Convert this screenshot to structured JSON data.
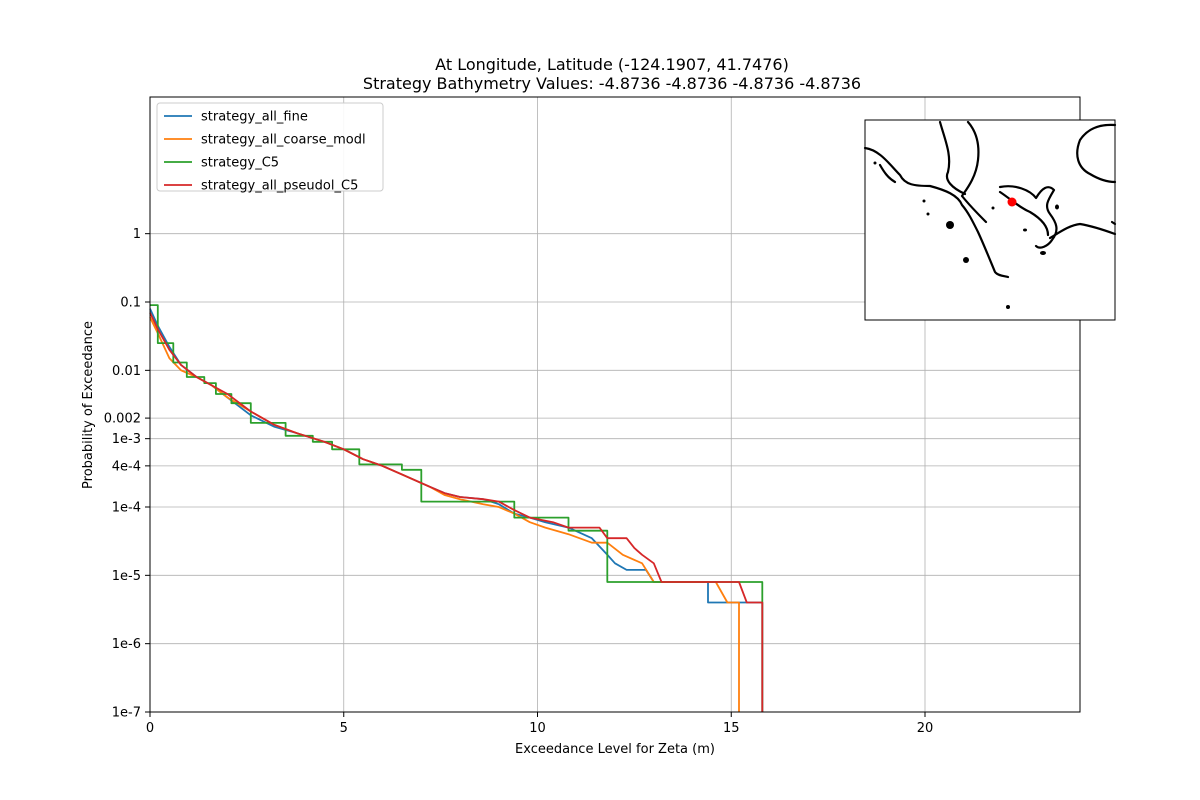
{
  "chart_data": {
    "type": "line",
    "title_lines": [
      "At Longitude, Latitude (-124.1907,  41.7476)",
      "Strategy Bathymetry Values:   -4.8736   -4.8736   -4.8736   -4.8736"
    ],
    "xlabel": "Exceedance Level for Zeta (m)",
    "ylabel": "Probability of Exceedance",
    "xlim": [
      0,
      24
    ],
    "ylim": [
      1e-07,
      100
    ],
    "yscale": "log",
    "grid": true,
    "legend_position": "upper-left",
    "x_ticks": [
      {
        "value": 0,
        "label": "0"
      },
      {
        "value": 5,
        "label": "5"
      },
      {
        "value": 10,
        "label": "10"
      },
      {
        "value": 15,
        "label": "15"
      },
      {
        "value": 20,
        "label": "20"
      }
    ],
    "y_ticks": [
      {
        "value": 1,
        "label": "1"
      },
      {
        "value": 0.1,
        "label": "0.1"
      },
      {
        "value": 0.01,
        "label": "0.01"
      },
      {
        "value": 0.002,
        "label": "0.002"
      },
      {
        "value": 0.001,
        "label": "1e-3"
      },
      {
        "value": 0.0004,
        "label": "4e-4"
      },
      {
        "value": 0.0001,
        "label": "1e-4"
      },
      {
        "value": 1e-05,
        "label": "1e-5"
      },
      {
        "value": 1e-06,
        "label": "1e-6"
      },
      {
        "value": 1e-07,
        "label": "1e-7"
      }
    ],
    "series": [
      {
        "name": "strategy_all_fine",
        "color": "#1f77b4",
        "points": [
          [
            0,
            0.08
          ],
          [
            0.2,
            0.045
          ],
          [
            0.5,
            0.022
          ],
          [
            0.8,
            0.012
          ],
          [
            1.2,
            0.008
          ],
          [
            1.6,
            0.006
          ],
          [
            2.0,
            0.004
          ],
          [
            2.6,
            0.0022
          ],
          [
            3.2,
            0.0015
          ],
          [
            3.8,
            0.0012
          ],
          [
            4.5,
            0.0009
          ],
          [
            5.0,
            0.0007
          ],
          [
            5.5,
            0.0005
          ],
          [
            6.0,
            0.0004
          ],
          [
            6.5,
            0.0003
          ],
          [
            7.2,
            0.0002
          ],
          [
            7.6,
            0.00016
          ],
          [
            8.0,
            0.00014
          ],
          [
            8.6,
            0.00013
          ],
          [
            9.0,
            0.00011
          ],
          [
            9.4,
            8e-05
          ],
          [
            9.8,
            7e-05
          ],
          [
            10.2,
            6e-05
          ],
          [
            10.8,
            5e-05
          ],
          [
            11.4,
            3.5e-05
          ],
          [
            11.8,
            2e-05
          ],
          [
            12.0,
            1.5e-05
          ],
          [
            12.3,
            1.2e-05
          ],
          [
            12.8,
            1.2e-05
          ],
          [
            13.0,
            8e-06
          ],
          [
            14.4,
            8e-06
          ],
          [
            14.4,
            4e-06
          ],
          [
            15.8,
            4e-06
          ],
          [
            15.8,
            1e-07
          ]
        ]
      },
      {
        "name": "strategy_all_coarse_modl",
        "color": "#ff7f0e",
        "points": [
          [
            0,
            0.06
          ],
          [
            0.2,
            0.035
          ],
          [
            0.5,
            0.015
          ],
          [
            0.8,
            0.01
          ],
          [
            1.2,
            0.008
          ],
          [
            1.6,
            0.006
          ],
          [
            2.0,
            0.004
          ],
          [
            2.6,
            0.0025
          ],
          [
            3.2,
            0.0016
          ],
          [
            3.8,
            0.0012
          ],
          [
            4.5,
            0.0009
          ],
          [
            5.0,
            0.0007
          ],
          [
            5.5,
            0.0005
          ],
          [
            6.0,
            0.0004
          ],
          [
            6.5,
            0.0003
          ],
          [
            7.2,
            0.0002
          ],
          [
            7.6,
            0.00015
          ],
          [
            8.0,
            0.00013
          ],
          [
            8.6,
            0.00011
          ],
          [
            9.0,
            0.0001
          ],
          [
            9.4,
            8e-05
          ],
          [
            9.8,
            6e-05
          ],
          [
            10.2,
            5e-05
          ],
          [
            10.8,
            4e-05
          ],
          [
            11.4,
            3e-05
          ],
          [
            11.8,
            3e-05
          ],
          [
            12.2,
            2e-05
          ],
          [
            12.7,
            1.5e-05
          ],
          [
            13.0,
            8e-06
          ],
          [
            14.6,
            8e-06
          ],
          [
            14.9,
            4e-06
          ],
          [
            15.2,
            4e-06
          ],
          [
            15.2,
            1e-07
          ]
        ]
      },
      {
        "name": "strategy_C5",
        "color": "#2ca02c",
        "points": [
          [
            0,
            0.09
          ],
          [
            0.2,
            0.09
          ],
          [
            0.2,
            0.025
          ],
          [
            0.6,
            0.025
          ],
          [
            0.6,
            0.013
          ],
          [
            0.95,
            0.013
          ],
          [
            0.95,
            0.008
          ],
          [
            1.4,
            0.008
          ],
          [
            1.4,
            0.0065
          ],
          [
            1.7,
            0.0065
          ],
          [
            1.7,
            0.0045
          ],
          [
            2.1,
            0.0045
          ],
          [
            2.1,
            0.0033
          ],
          [
            2.6,
            0.0033
          ],
          [
            2.6,
            0.0017
          ],
          [
            3.5,
            0.0017
          ],
          [
            3.5,
            0.0011
          ],
          [
            4.2,
            0.0011
          ],
          [
            4.2,
            0.0009
          ],
          [
            4.7,
            0.0009
          ],
          [
            4.7,
            0.0007
          ],
          [
            5.4,
            0.0007
          ],
          [
            5.4,
            0.00042
          ],
          [
            6.5,
            0.00042
          ],
          [
            6.5,
            0.00035
          ],
          [
            7.0,
            0.00035
          ],
          [
            7.0,
            0.00012
          ],
          [
            9.4,
            0.00012
          ],
          [
            9.4,
            7e-05
          ],
          [
            10.8,
            7e-05
          ],
          [
            10.8,
            4.5e-05
          ],
          [
            11.8,
            4.5e-05
          ],
          [
            11.8,
            8e-06
          ],
          [
            15.8,
            8e-06
          ],
          [
            15.8,
            1e-07
          ]
        ]
      },
      {
        "name": "strategy_all_pseudol_C5",
        "color": "#d62728",
        "points": [
          [
            0,
            0.07
          ],
          [
            0.2,
            0.04
          ],
          [
            0.5,
            0.02
          ],
          [
            0.8,
            0.012
          ],
          [
            1.2,
            0.008
          ],
          [
            1.6,
            0.006
          ],
          [
            2.0,
            0.0045
          ],
          [
            2.6,
            0.0025
          ],
          [
            3.2,
            0.0016
          ],
          [
            3.8,
            0.0012
          ],
          [
            4.5,
            0.0009
          ],
          [
            5.0,
            0.0007
          ],
          [
            5.5,
            0.0005
          ],
          [
            6.0,
            0.0004
          ],
          [
            6.5,
            0.0003
          ],
          [
            7.2,
            0.0002
          ],
          [
            7.6,
            0.00016
          ],
          [
            8.0,
            0.00014
          ],
          [
            8.6,
            0.00013
          ],
          [
            9.0,
            0.00012
          ],
          [
            9.4,
            9e-05
          ],
          [
            9.8,
            7e-05
          ],
          [
            10.4,
            6e-05
          ],
          [
            10.8,
            5e-05
          ],
          [
            11.6,
            5e-05
          ],
          [
            11.8,
            3.5e-05
          ],
          [
            12.3,
            3.5e-05
          ],
          [
            12.5,
            2.5e-05
          ],
          [
            12.7,
            2e-05
          ],
          [
            13.0,
            1.5e-05
          ],
          [
            13.2,
            8e-06
          ],
          [
            15.2,
            8e-06
          ],
          [
            15.4,
            4e-06
          ],
          [
            15.8,
            4e-06
          ],
          [
            15.8,
            1e-07
          ]
        ]
      }
    ],
    "inset_map": {
      "marker_color": "#ff0000"
    }
  }
}
